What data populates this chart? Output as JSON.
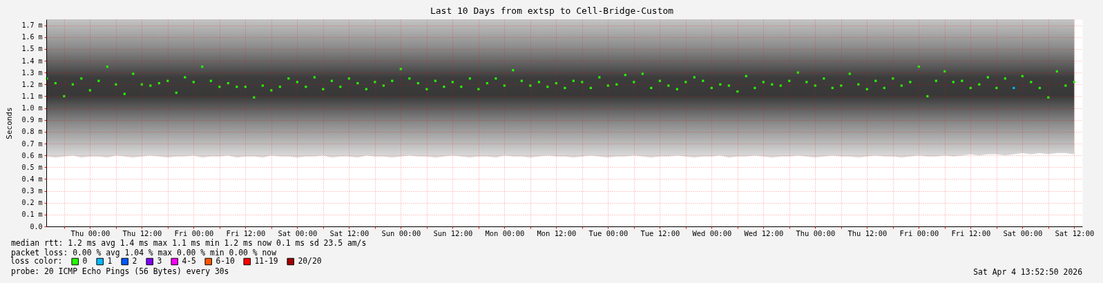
{
  "chart_data": {
    "type": "scatter",
    "title": "Last 10 Days from extsp to Cell-Bridge-Custom",
    "ylabel": "Seconds",
    "legend_title": "loss color:",
    "annotations": [
      "median rtt:  1.2 ms avg  1.4 ms max  1.1 ms min  1.2 ms now  0.1 ms sd  23.5   am/s",
      "packet loss: 0.00 % avg  1.04 % max  0.00 % min  0.00 % now",
      "probe:       20 ICMP Echo Pings (56 Bytes) every 30s",
      "Sat Apr  4 13:52:50 2026"
    ],
    "x": [
      "2026-03-25T14:00",
      "2026-03-25T16:00",
      "2026-03-25T18:00",
      "2026-03-25T20:00",
      "2026-03-25T22:00",
      "2026-03-26T00:00",
      "2026-03-26T02:00",
      "2026-03-26T04:00",
      "2026-03-26T06:00",
      "2026-03-26T08:00",
      "2026-03-26T10:00",
      "2026-03-26T12:00",
      "2026-03-26T14:00",
      "2026-03-26T16:00",
      "2026-03-26T18:00",
      "2026-03-26T20:00",
      "2026-03-26T22:00",
      "2026-03-27T00:00",
      "2026-03-27T02:00",
      "2026-03-27T04:00",
      "2026-03-27T06:00",
      "2026-03-27T08:00",
      "2026-03-27T10:00",
      "2026-03-27T12:00",
      "2026-03-27T14:00",
      "2026-03-27T16:00",
      "2026-03-27T18:00",
      "2026-03-27T20:00",
      "2026-03-27T22:00",
      "2026-03-28T00:00",
      "2026-03-28T02:00",
      "2026-03-28T04:00",
      "2026-03-28T06:00",
      "2026-03-28T08:00",
      "2026-03-28T10:00",
      "2026-03-28T12:00",
      "2026-03-28T14:00",
      "2026-03-28T16:00",
      "2026-03-28T18:00",
      "2026-03-28T20:00",
      "2026-03-28T22:00",
      "2026-03-29T00:00",
      "2026-03-29T02:00",
      "2026-03-29T04:00",
      "2026-03-29T06:00",
      "2026-03-29T08:00",
      "2026-03-29T10:00",
      "2026-03-29T12:00",
      "2026-03-29T14:00",
      "2026-03-29T16:00",
      "2026-03-29T18:00",
      "2026-03-29T20:00",
      "2026-03-29T22:00",
      "2026-03-30T00:00",
      "2026-03-30T02:00",
      "2026-03-30T04:00",
      "2026-03-30T06:00",
      "2026-03-30T08:00",
      "2026-03-30T10:00",
      "2026-03-30T12:00",
      "2026-03-30T14:00",
      "2026-03-30T16:00",
      "2026-03-30T18:00",
      "2026-03-30T20:00",
      "2026-03-30T22:00",
      "2026-03-31T00:00",
      "2026-03-31T02:00",
      "2026-03-31T04:00",
      "2026-03-31T06:00",
      "2026-03-31T08:00",
      "2026-03-31T10:00",
      "2026-03-31T12:00",
      "2026-03-31T14:00",
      "2026-03-31T16:00",
      "2026-03-31T18:00",
      "2026-03-31T20:00",
      "2026-03-31T22:00",
      "2026-04-01T00:00",
      "2026-04-01T02:00",
      "2026-04-01T04:00",
      "2026-04-01T06:00",
      "2026-04-01T08:00",
      "2026-04-01T10:00",
      "2026-04-01T12:00",
      "2026-04-01T14:00",
      "2026-04-01T16:00",
      "2026-04-01T18:00",
      "2026-04-01T20:00",
      "2026-04-01T22:00",
      "2026-04-02T00:00",
      "2026-04-02T02:00",
      "2026-04-02T04:00",
      "2026-04-02T06:00",
      "2026-04-02T08:00",
      "2026-04-02T10:00",
      "2026-04-02T12:00",
      "2026-04-02T14:00",
      "2026-04-02T16:00",
      "2026-04-02T18:00",
      "2026-04-02T20:00",
      "2026-04-02T22:00",
      "2026-04-03T00:00",
      "2026-04-03T02:00",
      "2026-04-03T04:00",
      "2026-04-03T06:00",
      "2026-04-03T08:00",
      "2026-04-03T10:00",
      "2026-04-03T12:00",
      "2026-04-03T14:00",
      "2026-04-03T16:00",
      "2026-04-03T18:00",
      "2026-04-03T20:00",
      "2026-04-03T22:00",
      "2026-04-04T00:00",
      "2026-04-04T02:00",
      "2026-04-04T04:00",
      "2026-04-04T06:00",
      "2026-04-04T08:00",
      "2026-04-04T10:00",
      "2026-04-04T12:00"
    ],
    "series": [
      {
        "name": "0",
        "color": "#26ff00",
        "values": [
          1.25,
          1.21,
          1.1,
          1.2,
          1.25,
          1.15,
          1.23,
          1.35,
          1.2,
          1.12,
          1.29,
          1.2,
          1.19,
          1.21,
          1.23,
          1.13,
          1.26,
          1.22,
          1.35,
          1.23,
          1.18,
          1.21,
          1.18,
          1.18,
          1.09,
          1.19,
          1.15,
          1.18,
          1.25,
          1.22,
          1.18,
          1.26,
          1.16,
          1.23,
          1.18,
          1.25,
          1.21,
          1.16,
          1.22,
          1.19,
          1.23,
          1.33,
          1.25,
          1.21,
          1.16,
          1.23,
          1.18,
          1.22,
          1.18,
          1.25,
          1.16,
          1.21,
          1.25,
          1.19,
          1.32,
          1.23,
          1.19,
          1.22,
          1.18,
          1.21,
          1.17,
          1.23,
          1.22,
          1.17,
          1.26,
          1.19,
          1.2,
          1.28,
          1.22,
          1.29,
          1.17,
          1.23,
          1.19,
          1.16,
          1.22,
          1.26,
          1.23,
          1.17,
          1.2,
          1.19,
          1.14,
          1.27,
          1.17,
          1.22,
          1.2,
          1.19,
          1.23,
          1.3,
          1.22,
          1.19,
          1.25,
          1.17,
          1.19,
          1.29,
          1.2,
          1.16,
          1.23,
          1.17,
          1.25,
          1.19,
          1.22,
          1.35,
          1.1,
          1.23,
          1.31,
          1.22,
          1.23,
          1.17,
          1.2,
          1.26,
          1.17,
          1.25,
          null,
          1.27,
          1.22,
          1.17,
          1.09,
          1.31,
          1.19,
          1.22
        ],
        "lower": [
          0.59,
          0.58,
          0.59,
          0.6,
          0.58,
          0.59,
          0.59,
          0.58,
          0.6,
          0.59,
          0.58,
          0.59,
          0.6,
          0.59,
          0.58,
          0.59,
          0.59,
          0.6,
          0.58,
          0.59,
          0.59,
          0.6,
          0.58,
          0.59,
          0.59,
          0.58,
          0.6,
          0.59,
          0.59,
          0.58,
          0.59,
          0.59,
          0.6,
          0.58,
          0.59,
          0.59,
          0.58,
          0.6,
          0.59,
          0.59,
          0.58,
          0.59,
          0.6,
          0.59,
          0.59,
          0.58,
          0.59,
          0.6,
          0.59,
          0.58,
          0.59,
          0.59,
          0.58,
          0.6,
          0.59,
          0.59,
          0.58,
          0.59,
          0.6,
          0.59,
          0.59,
          0.58,
          0.59,
          0.6,
          0.59,
          0.58,
          0.59,
          0.59,
          0.6,
          0.59,
          0.58,
          0.59,
          0.59,
          0.6,
          0.59,
          0.58,
          0.59,
          0.59,
          0.6,
          0.58,
          0.59,
          0.59,
          0.6,
          0.59,
          0.58,
          0.59,
          0.59,
          0.6,
          0.59,
          0.58,
          0.59,
          0.6,
          0.59,
          0.59,
          0.58,
          0.59,
          0.6,
          0.59,
          0.59,
          0.58,
          0.59,
          0.6,
          0.59,
          0.59,
          0.6,
          0.59,
          0.6,
          0.61,
          0.6,
          0.61,
          0.61,
          0.6,
          0.61,
          0.62,
          0.61,
          0.62,
          0.61,
          0.62,
          0.62,
          0.61
        ],
        "upper": [
          1.75,
          1.75,
          1.75,
          1.75,
          1.75,
          1.75,
          1.75,
          1.75,
          1.75,
          1.75,
          1.75,
          1.75,
          1.75,
          1.75,
          1.75,
          1.75,
          1.75,
          1.75,
          1.75,
          1.75,
          1.75,
          1.75,
          1.75,
          1.75,
          1.75,
          1.75,
          1.75,
          1.75,
          1.75,
          1.75,
          1.75,
          1.75,
          1.75,
          1.75,
          1.75,
          1.75,
          1.75,
          1.75,
          1.75,
          1.75,
          1.75,
          1.75,
          1.75,
          1.75,
          1.75,
          1.75,
          1.75,
          1.75,
          1.75,
          1.75,
          1.75,
          1.75,
          1.75,
          1.75,
          1.75,
          1.75,
          1.75,
          1.75,
          1.75,
          1.75,
          1.75,
          1.75,
          1.75,
          1.75,
          1.75,
          1.75,
          1.75,
          1.75,
          1.75,
          1.75,
          1.75,
          1.75,
          1.75,
          1.75,
          1.75,
          1.75,
          1.75,
          1.75,
          1.75,
          1.75,
          1.75,
          1.75,
          1.75,
          1.75,
          1.75,
          1.75,
          1.75,
          1.75,
          1.75,
          1.75,
          1.75,
          1.75,
          1.75,
          1.75,
          1.75,
          1.75,
          1.75,
          1.75,
          1.75,
          1.75,
          1.75,
          1.75,
          1.75,
          1.75,
          1.75,
          1.75,
          1.75,
          1.75,
          1.75,
          1.75,
          1.75,
          1.75,
          1.75,
          1.75,
          1.75,
          1.75,
          1.75,
          1.75,
          1.75,
          1.75
        ]
      },
      {
        "name": "1",
        "color": "#00b8ff",
        "x": [
          "2026-04-03T22:00"
        ],
        "values": [
          1.17
        ]
      },
      {
        "name": "2",
        "color": "#0059ff",
        "values": [
          null,
          null,
          null,
          null,
          null,
          null,
          null,
          null,
          null,
          null,
          null,
          null,
          null,
          null,
          null,
          null,
          null,
          null,
          null,
          null,
          null,
          null,
          null,
          null,
          null,
          null,
          null,
          null,
          null,
          null,
          null,
          null,
          null,
          null,
          null,
          null,
          null,
          null,
          null,
          null,
          null,
          null,
          null,
          null,
          null,
          null,
          null,
          null,
          null,
          null,
          null,
          null,
          null,
          null,
          null,
          null,
          null,
          null,
          null,
          null,
          null,
          null,
          null,
          null,
          null,
          null,
          null,
          null,
          null,
          null,
          null,
          null,
          null,
          null,
          null,
          null,
          null,
          null,
          null,
          null,
          null,
          null,
          null,
          null,
          null,
          null,
          null,
          null,
          null,
          null,
          null,
          null,
          null,
          null,
          null,
          null,
          null,
          null,
          null,
          null,
          null,
          null,
          null,
          null,
          null,
          null,
          null,
          null,
          null,
          null,
          null,
          null,
          null,
          null,
          null,
          null,
          null,
          null,
          null,
          null
        ]
      },
      {
        "name": "3",
        "color": "#7e00ff",
        "values": [
          null,
          null,
          null,
          null,
          null,
          null,
          null,
          null,
          null,
          null,
          null,
          null,
          null,
          null,
          null,
          null,
          null,
          null,
          null,
          null,
          null,
          null,
          null,
          null,
          null,
          null,
          null,
          null,
          null,
          null,
          null,
          null,
          null,
          null,
          null,
          null,
          null,
          null,
          null,
          null,
          null,
          null,
          null,
          null,
          null,
          null,
          null,
          null,
          null,
          null,
          null,
          null,
          null,
          null,
          null,
          null,
          null,
          null,
          null,
          null,
          null,
          null,
          null,
          null,
          null,
          null,
          null,
          null,
          null,
          null,
          null,
          null,
          null,
          null,
          null,
          null,
          null,
          null,
          null,
          null,
          null,
          null,
          null,
          null,
          null,
          null,
          null,
          null,
          null,
          null,
          null,
          null,
          null,
          null,
          null,
          null,
          null,
          null,
          null,
          null,
          null,
          null,
          null,
          null,
          null,
          null,
          null,
          null,
          null,
          null,
          null,
          null,
          null,
          null,
          null,
          null,
          null,
          null,
          null,
          null
        ]
      },
      {
        "name": "4-5",
        "color": "#ff00ff",
        "values": [
          null,
          null,
          null,
          null,
          null,
          null,
          null,
          null,
          null,
          null,
          null,
          null,
          null,
          null,
          null,
          null,
          null,
          null,
          null,
          null,
          null,
          null,
          null,
          null,
          null,
          null,
          null,
          null,
          null,
          null,
          null,
          null,
          null,
          null,
          null,
          null,
          null,
          null,
          null,
          null,
          null,
          null,
          null,
          null,
          null,
          null,
          null,
          null,
          null,
          null,
          null,
          null,
          null,
          null,
          null,
          null,
          null,
          null,
          null,
          null,
          null,
          null,
          null,
          null,
          null,
          null,
          null,
          null,
          null,
          null,
          null,
          null,
          null,
          null,
          null,
          null,
          null,
          null,
          null,
          null,
          null,
          null,
          null,
          null,
          null,
          null,
          null,
          null,
          null,
          null,
          null,
          null,
          null,
          null,
          null,
          null,
          null,
          null,
          null,
          null,
          null,
          null,
          null,
          null,
          null,
          null,
          null,
          null,
          null,
          null,
          null,
          null,
          null,
          null,
          null,
          null,
          null,
          null,
          null,
          null
        ]
      },
      {
        "name": "6-10",
        "color": "#ff5500",
        "values": [
          null,
          null,
          null,
          null,
          null,
          null,
          null,
          null,
          null,
          null,
          null,
          null,
          null,
          null,
          null,
          null,
          null,
          null,
          null,
          null,
          null,
          null,
          null,
          null,
          null,
          null,
          null,
          null,
          null,
          null,
          null,
          null,
          null,
          null,
          null,
          null,
          null,
          null,
          null,
          null,
          null,
          null,
          null,
          null,
          null,
          null,
          null,
          null,
          null,
          null,
          null,
          null,
          null,
          null,
          null,
          null,
          null,
          null,
          null,
          null,
          null,
          null,
          null,
          null,
          null,
          null,
          null,
          null,
          null,
          null,
          null,
          null,
          null,
          null,
          null,
          null,
          null,
          null,
          null,
          null,
          null,
          null,
          null,
          null,
          null,
          null,
          null,
          null,
          null,
          null,
          null,
          null,
          null,
          null,
          null,
          null,
          null,
          null,
          null,
          null,
          null,
          null,
          null,
          null,
          null,
          null,
          null,
          null,
          null,
          null,
          null,
          null,
          null,
          null,
          null,
          null,
          null,
          null,
          null,
          null
        ]
      },
      {
        "name": "11-19",
        "color": "#ff0000",
        "values": [
          null,
          null,
          null,
          null,
          null,
          null,
          null,
          null,
          null,
          null,
          null,
          null,
          null,
          null,
          null,
          null,
          null,
          null,
          null,
          null,
          null,
          null,
          null,
          null,
          null,
          null,
          null,
          null,
          null,
          null,
          null,
          null,
          null,
          null,
          null,
          null,
          null,
          null,
          null,
          null,
          null,
          null,
          null,
          null,
          null,
          null,
          null,
          null,
          null,
          null,
          null,
          null,
          null,
          null,
          null,
          null,
          null,
          null,
          null,
          null,
          null,
          null,
          null,
          null,
          null,
          null,
          null,
          null,
          null,
          null,
          null,
          null,
          null,
          null,
          null,
          null,
          null,
          null,
          null,
          null,
          null,
          null,
          null,
          null,
          null,
          null,
          null,
          null,
          null,
          null,
          null,
          null,
          null,
          null,
          null,
          null,
          null,
          null,
          null,
          null,
          null,
          null,
          null,
          null,
          null,
          null,
          null,
          null,
          null,
          null,
          null,
          null,
          null,
          null,
          null,
          null,
          null,
          null,
          null,
          null
        ]
      },
      {
        "name": "20/20",
        "color": "#a10000",
        "values": [
          null,
          null,
          null,
          null,
          null,
          null,
          null,
          null,
          null,
          null,
          null,
          null,
          null,
          null,
          null,
          null,
          null,
          null,
          null,
          null,
          null,
          null,
          null,
          null,
          null,
          null,
          null,
          null,
          null,
          null,
          null,
          null,
          null,
          null,
          null,
          null,
          null,
          null,
          null,
          null,
          null,
          null,
          null,
          null,
          null,
          null,
          null,
          null,
          null,
          null,
          null,
          null,
          null,
          null,
          null,
          null,
          null,
          null,
          null,
          null,
          null,
          null,
          null,
          null,
          null,
          null,
          null,
          null,
          null,
          null,
          null,
          null,
          null,
          null,
          null,
          null,
          null,
          null,
          null,
          null,
          null,
          null,
          null,
          null,
          null,
          null,
          null,
          null,
          null,
          null,
          null,
          null,
          null,
          null,
          null,
          null,
          null,
          null,
          null,
          null,
          null,
          null,
          null,
          null,
          null,
          null,
          null,
          null,
          null,
          null,
          null,
          null,
          null,
          null,
          null,
          null,
          null,
          null,
          null,
          null
        ]
      }
    ],
    "xlim": [
      "2026-03-25T13:52",
      "2026-04-04T13:52"
    ],
    "ylim": [
      0,
      1.75
    ],
    "xticks": [
      {
        "value": "2026-03-25T18:00",
        "label": null
      },
      {
        "value": "2026-03-26T00:00",
        "label": "Thu 00:00"
      },
      {
        "value": "2026-03-26T06:00",
        "label": null
      },
      {
        "value": "2026-03-26T12:00",
        "label": "Thu 12:00"
      },
      {
        "value": "2026-03-26T18:00",
        "label": null
      },
      {
        "value": "2026-03-27T00:00",
        "label": "Fri 00:00"
      },
      {
        "value": "2026-03-27T06:00",
        "label": null
      },
      {
        "value": "2026-03-27T12:00",
        "label": "Fri 12:00"
      },
      {
        "value": "2026-03-27T18:00",
        "label": null
      },
      {
        "value": "2026-03-28T00:00",
        "label": "Sat 00:00"
      },
      {
        "value": "2026-03-28T06:00",
        "label": null
      },
      {
        "value": "2026-03-28T12:00",
        "label": "Sat 12:00"
      },
      {
        "value": "2026-03-28T18:00",
        "label": null
      },
      {
        "value": "2026-03-29T00:00",
        "label": "Sun 00:00"
      },
      {
        "value": "2026-03-29T06:00",
        "label": null
      },
      {
        "value": "2026-03-29T12:00",
        "label": "Sun 12:00"
      },
      {
        "value": "2026-03-29T18:00",
        "label": null
      },
      {
        "value": "2026-03-30T00:00",
        "label": "Mon 00:00"
      },
      {
        "value": "2026-03-30T06:00",
        "label": null
      },
      {
        "value": "2026-03-30T12:00",
        "label": "Mon 12:00"
      },
      {
        "value": "2026-03-30T18:00",
        "label": null
      },
      {
        "value": "2026-03-31T00:00",
        "label": "Tue 00:00"
      },
      {
        "value": "2026-03-31T06:00",
        "label": null
      },
      {
        "value": "2026-03-31T12:00",
        "label": "Tue 12:00"
      },
      {
        "value": "2026-03-31T18:00",
        "label": null
      },
      {
        "value": "2026-04-01T00:00",
        "label": "Wed 00:00"
      },
      {
        "value": "2026-04-01T06:00",
        "label": null
      },
      {
        "value": "2026-04-01T12:00",
        "label": "Wed 12:00"
      },
      {
        "value": "2026-04-01T18:00",
        "label": null
      },
      {
        "value": "2026-04-02T00:00",
        "label": "Thu 00:00"
      },
      {
        "value": "2026-04-02T06:00",
        "label": null
      },
      {
        "value": "2026-04-02T12:00",
        "label": "Thu 12:00"
      },
      {
        "value": "2026-04-02T18:00",
        "label": null
      },
      {
        "value": "2026-04-03T00:00",
        "label": "Fri 00:00"
      },
      {
        "value": "2026-04-03T06:00",
        "label": null
      },
      {
        "value": "2026-04-03T12:00",
        "label": "Fri 12:00"
      },
      {
        "value": "2026-04-03T18:00",
        "label": null
      },
      {
        "value": "2026-04-04T00:00",
        "label": "Sat 00:00"
      },
      {
        "value": "2026-04-04T06:00",
        "label": null
      },
      {
        "value": "2026-04-04T12:00",
        "label": "Sat 12:00"
      }
    ],
    "yticks": [
      {
        "value": 0,
        "label": "0.0"
      },
      {
        "value": 0.1,
        "label": "0.1 m"
      },
      {
        "value": 0.2,
        "label": "0.2 m"
      },
      {
        "value": 0.3,
        "label": "0.3 m"
      },
      {
        "value": 0.4,
        "label": "0.4 m"
      },
      {
        "value": 0.5,
        "label": "0.5 m"
      },
      {
        "value": 0.6,
        "label": "0.6 m"
      },
      {
        "value": 0.7,
        "label": "0.7 m"
      },
      {
        "value": 0.8,
        "label": "0.8 m"
      },
      {
        "value": 0.9,
        "label": "0.9 m"
      },
      {
        "value": 1.0,
        "label": "1.0 m"
      },
      {
        "value": 1.1,
        "label": "1.1 m"
      },
      {
        "value": 1.2,
        "label": "1.2 m"
      },
      {
        "value": 1.3,
        "label": "1.3 m"
      },
      {
        "value": 1.4,
        "label": "1.4 m"
      },
      {
        "value": 1.5,
        "label": "1.5 m"
      },
      {
        "value": 1.6,
        "label": "1.6 m"
      },
      {
        "value": 1.7,
        "label": "1.7 m"
      }
    ],
    "grid": true,
    "legend": "bottom",
    "marker": "square"
  }
}
